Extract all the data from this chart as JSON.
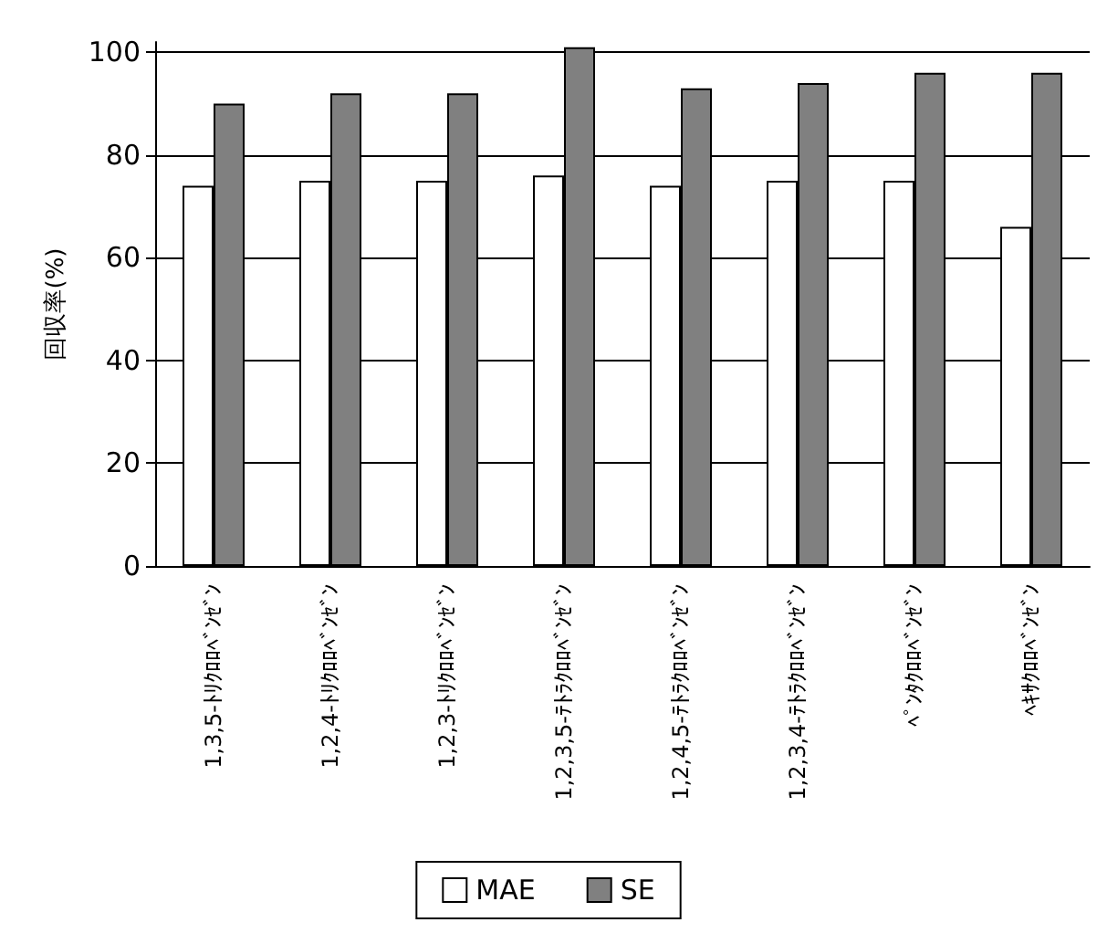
{
  "chart_data": {
    "type": "bar",
    "ylabel": "回収率(%)",
    "categories": [
      "1,3,5-ﾄﾘｸﾛﾛﾍﾞﾝｾﾞﾝ",
      "1,2,4-ﾄﾘｸﾛﾛﾍﾞﾝｾﾞﾝ",
      "1,2,3-ﾄﾘｸﾛﾛﾍﾞﾝｾﾞﾝ",
      "1,2,3,5-ﾃﾄﾗｸﾛﾛﾍﾞﾝｾﾞﾝ",
      "1,2,4,5-ﾃﾄﾗｸﾛﾛﾍﾞﾝｾﾞﾝ",
      "1,2,3,4-ﾃﾄﾗｸﾛﾛﾍﾞﾝｾﾞﾝ",
      "ﾍﾟﾝﾀｸﾛﾛﾍﾞﾝｾﾞﾝ",
      "ﾍｷｻｸﾛﾛﾍﾞﾝｾﾞﾝ"
    ],
    "series": [
      {
        "name": "MAE",
        "color": "#ffffff",
        "values": [
          74,
          75,
          75,
          76,
          74,
          75,
          75,
          66
        ]
      },
      {
        "name": "SE",
        "color": "#808080",
        "values": [
          90,
          92,
          92,
          101,
          93,
          94,
          96,
          96
        ]
      }
    ],
    "ylim": [
      0,
      102
    ],
    "yticks": [
      0,
      20,
      40,
      60,
      80,
      100
    ],
    "grid": "y",
    "legend": "bottom"
  }
}
